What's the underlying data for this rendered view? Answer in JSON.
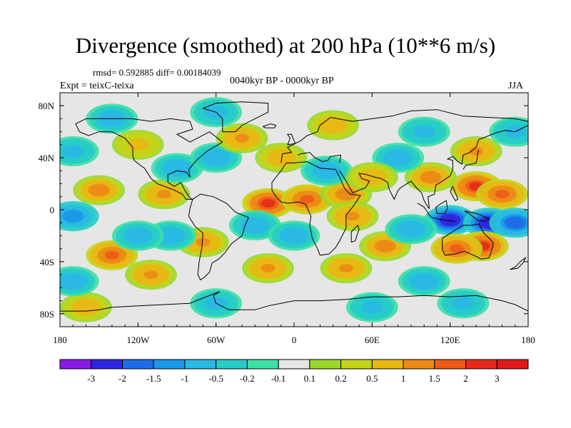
{
  "chart_data": {
    "type": "heatmap",
    "title": "Divergence (smoothed) at 200 hPa (10**6 m/s)",
    "stats_line": "rmsd= 0.592885 diff= 0.00184039",
    "period_label": "0040kyr BP - 0000kyr BP",
    "experiment_label": "Expt = teixC-teixa",
    "season_label": "JJA",
    "x_range": [
      -180,
      180
    ],
    "y_range": [
      -90,
      90
    ],
    "x_ticks": [
      {
        "value": -180,
        "label": "180"
      },
      {
        "value": -120,
        "label": "120W"
      },
      {
        "value": -60,
        "label": "60W"
      },
      {
        "value": 0,
        "label": "0"
      },
      {
        "value": 60,
        "label": "60E"
      },
      {
        "value": 120,
        "label": "120E"
      },
      {
        "value": 180,
        "label": "180"
      }
    ],
    "y_ticks": [
      {
        "value": 80,
        "label": "80N"
      },
      {
        "value": 40,
        "label": "40N"
      },
      {
        "value": 0,
        "label": "0"
      },
      {
        "value": -40,
        "label": "40S"
      },
      {
        "value": -80,
        "label": "80S"
      }
    ],
    "colorbar": {
      "labels": [
        "-3",
        "-2",
        "-1.5",
        "-1",
        "-0.5",
        "-0.2",
        "-0.1",
        "0.1",
        "0.2",
        "0.5",
        "1",
        "1.5",
        "2",
        "3"
      ],
      "colors": [
        "#8a1ae6",
        "#2e26e0",
        "#1f6ce8",
        "#1b98e8",
        "#2ab8e4",
        "#27ccc8",
        "#3be0a4",
        "#e6e6e6",
        "#9ad82c",
        "#c4d418",
        "#e8b814",
        "#ec8a16",
        "#ee5a18",
        "#e62a1c",
        "#e01a1a"
      ]
    },
    "field_blobs": [
      {
        "lon": -20,
        "lat": 5,
        "value": 2.0
      },
      {
        "lon": 10,
        "lat": 8,
        "value": 1.5
      },
      {
        "lon": 40,
        "lat": 12,
        "value": 1.2
      },
      {
        "lon": -150,
        "lat": 15,
        "value": 1.2
      },
      {
        "lon": -100,
        "lat": 12,
        "value": 1.0
      },
      {
        "lon": 140,
        "lat": 18,
        "value": 2.0
      },
      {
        "lon": 160,
        "lat": 12,
        "value": 1.7
      },
      {
        "lon": 105,
        "lat": 25,
        "value": 1.2
      },
      {
        "lon": 120,
        "lat": -8,
        "value": -3.0
      },
      {
        "lon": 150,
        "lat": -10,
        "value": -2.6
      },
      {
        "lon": 170,
        "lat": -10,
        "value": -2.0
      },
      {
        "lon": -170,
        "lat": -5,
        "value": -1.5
      },
      {
        "lon": 145,
        "lat": -28,
        "value": 2.0
      },
      {
        "lon": 125,
        "lat": -30,
        "value": 1.5
      },
      {
        "lon": 70,
        "lat": -28,
        "value": 1.2
      },
      {
        "lon": 45,
        "lat": -5,
        "value": 1.0
      },
      {
        "lon": -70,
        "lat": -25,
        "value": 1.0
      },
      {
        "lon": -140,
        "lat": -35,
        "value": 1.5
      },
      {
        "lon": -110,
        "lat": -50,
        "value": 1.0
      },
      {
        "lon": -20,
        "lat": -45,
        "value": 1.0
      },
      {
        "lon": 40,
        "lat": -45,
        "value": 1.0
      },
      {
        "lon": -95,
        "lat": -20,
        "value": -1.0
      },
      {
        "lon": -120,
        "lat": -20,
        "value": -1.0
      },
      {
        "lon": -30,
        "lat": -12,
        "value": -1.0
      },
      {
        "lon": 0,
        "lat": -20,
        "value": -0.8
      },
      {
        "lon": 90,
        "lat": -15,
        "value": -1.0
      },
      {
        "lon": -90,
        "lat": 32,
        "value": -1.0
      },
      {
        "lon": -60,
        "lat": 40,
        "value": -0.8
      },
      {
        "lon": -40,
        "lat": 55,
        "value": 1.0
      },
      {
        "lon": -10,
        "lat": 40,
        "value": 0.8
      },
      {
        "lon": 25,
        "lat": 30,
        "value": -1.0
      },
      {
        "lon": 80,
        "lat": 40,
        "value": -1.0
      },
      {
        "lon": 60,
        "lat": 25,
        "value": 0.8
      },
      {
        "lon": -120,
        "lat": 50,
        "value": 0.7
      },
      {
        "lon": -170,
        "lat": 45,
        "value": -0.7
      },
      {
        "lon": -140,
        "lat": 70,
        "value": -0.8
      },
      {
        "lon": -60,
        "lat": 75,
        "value": -0.7
      },
      {
        "lon": 30,
        "lat": 65,
        "value": 0.8
      },
      {
        "lon": 100,
        "lat": 60,
        "value": -0.7
      },
      {
        "lon": 140,
        "lat": 45,
        "value": 1.0
      },
      {
        "lon": 170,
        "lat": 60,
        "value": -0.7
      },
      {
        "lon": -160,
        "lat": -75,
        "value": 0.8
      },
      {
        "lon": -60,
        "lat": -72,
        "value": -0.7
      },
      {
        "lon": 60,
        "lat": -75,
        "value": -0.7
      },
      {
        "lon": 130,
        "lat": -72,
        "value": -0.7
      },
      {
        "lon": 100,
        "lat": -55,
        "value": -0.8
      },
      {
        "lon": -170,
        "lat": -55,
        "value": -1.0
      }
    ]
  }
}
